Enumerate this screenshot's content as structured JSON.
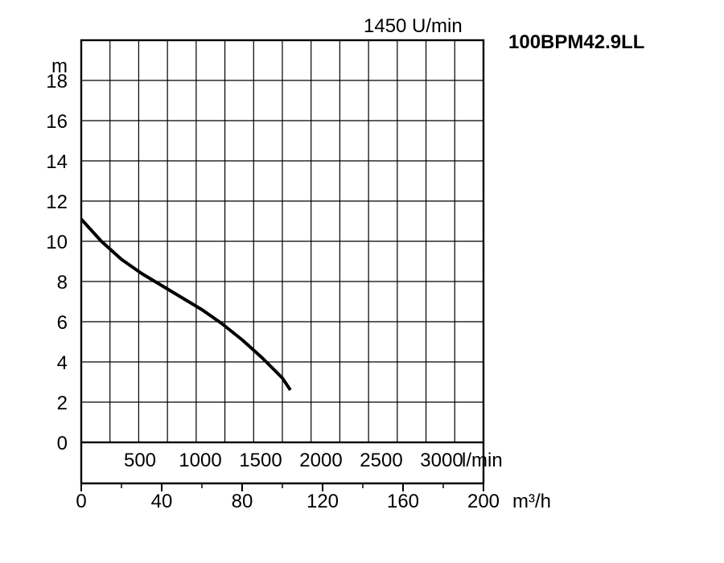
{
  "chart_data": {
    "type": "line",
    "title": "100BPM42.9LL",
    "subtitle": "1450 U/min",
    "ylabel": "m",
    "xlabel": "m³/h",
    "secondary_xlabel": "l/min",
    "xlim": [
      0,
      200
    ],
    "ylim": [
      0,
      18
    ],
    "grid": true,
    "y_ticks": [
      "0",
      "2",
      "4",
      "6",
      "8",
      "10",
      "12",
      "14",
      "16",
      "18"
    ],
    "x_ticks": [
      "0",
      "40",
      "80",
      "120",
      "160",
      "200"
    ],
    "x_tick_values": [
      0,
      40,
      80,
      120,
      160,
      200
    ],
    "secondary_x_ticks": [
      "500",
      "1000",
      "1500",
      "2000",
      "2500",
      "3000"
    ],
    "secondary_x_tick_values": [
      500,
      1000,
      1500,
      2000,
      2500,
      3000
    ],
    "series": [
      {
        "x": [
          0,
          10,
          20,
          30,
          40,
          50,
          60,
          70,
          80,
          90,
          100,
          104
        ],
        "y": [
          11.1,
          10.0,
          9.1,
          8.4,
          7.8,
          7.2,
          6.6,
          5.9,
          5.1,
          4.2,
          3.2,
          2.6
        ]
      }
    ]
  }
}
